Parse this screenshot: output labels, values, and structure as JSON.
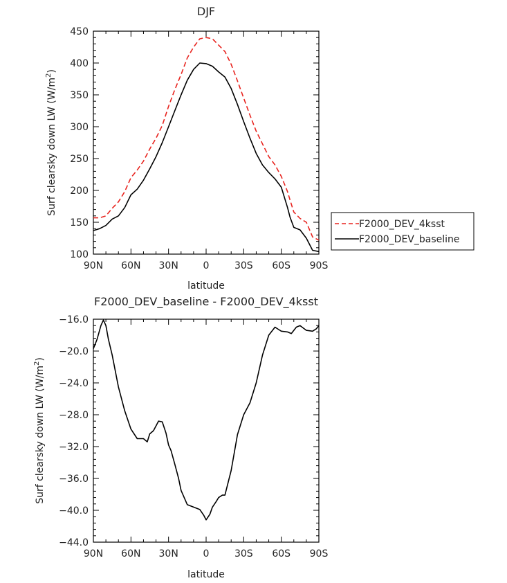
{
  "chart_data": [
    {
      "type": "line",
      "title": "DJF",
      "xlabel": "latitude",
      "ylabel": "Surf clearsky down LW (W/m²)",
      "ylabel_main": "Surf clearsky down LW (W/m",
      "ylabel_sup": "2",
      "ylabel_close": ")",
      "xlim": [
        90,
        -90
      ],
      "ylim": [
        100,
        450
      ],
      "xticks": [
        90,
        60,
        30,
        0,
        -30,
        -60,
        -90
      ],
      "xtick_labels": [
        "90N",
        "60N",
        "30N",
        "0",
        "30S",
        "60S",
        "90S"
      ],
      "yticks": [
        100,
        150,
        200,
        250,
        300,
        350,
        400,
        450
      ],
      "ytick_labels": [
        "100",
        "150",
        "200",
        "250",
        "300",
        "350",
        "400",
        "450"
      ],
      "legend_position": "right",
      "series": [
        {
          "name": "F2000_DEV_4ksst",
          "color": "#e8231e",
          "dash": "dashed",
          "x": [
            90,
            85,
            80,
            75,
            70,
            65,
            60,
            55,
            50,
            45,
            40,
            35,
            30,
            25,
            20,
            15,
            10,
            5,
            0,
            -5,
            -10,
            -15,
            -20,
            -25,
            -30,
            -35,
            -40,
            -45,
            -50,
            -55,
            -60,
            -65,
            -67,
            -70,
            -75,
            -80,
            -85,
            -90
          ],
          "y": [
            157,
            157,
            160,
            172,
            182,
            198,
            220,
            232,
            246,
            265,
            282,
            302,
            332,
            358,
            382,
            408,
            425,
            438,
            440,
            438,
            428,
            418,
            398,
            372,
            345,
            318,
            293,
            273,
            253,
            240,
            222,
            198,
            185,
            166,
            156,
            150,
            127,
            122
          ]
        },
        {
          "name": "F2000_DEV_baseline",
          "color": "#000000",
          "dash": "solid",
          "x": [
            90,
            85,
            80,
            75,
            70,
            65,
            60,
            55,
            50,
            45,
            40,
            35,
            30,
            25,
            20,
            15,
            10,
            5,
            0,
            -5,
            -10,
            -15,
            -20,
            -25,
            -30,
            -35,
            -40,
            -45,
            -50,
            -55,
            -60,
            -65,
            -67,
            -70,
            -75,
            -80,
            -85,
            -90
          ],
          "y": [
            137,
            140,
            145,
            155,
            160,
            173,
            193,
            202,
            216,
            234,
            253,
            275,
            300,
            325,
            350,
            373,
            390,
            400,
            399,
            395,
            386,
            378,
            360,
            335,
            308,
            282,
            258,
            240,
            228,
            218,
            205,
            173,
            158,
            142,
            138,
            125,
            106,
            104
          ]
        }
      ]
    },
    {
      "type": "line",
      "title": "F2000_DEV_baseline - F2000_DEV_4ksst",
      "xlabel": "latitude",
      "ylabel": "Surf clearsky down LW (W/m²)",
      "ylabel_main": "Surf clearsky down LW (W/m",
      "ylabel_sup": "2",
      "ylabel_close": ")",
      "xlim": [
        90,
        -90
      ],
      "ylim": [
        -44,
        -16
      ],
      "xticks": [
        90,
        60,
        30,
        0,
        -30,
        -60,
        -90
      ],
      "xtick_labels": [
        "90N",
        "60N",
        "30N",
        "0",
        "30S",
        "60S",
        "90S"
      ],
      "yticks": [
        -44,
        -40,
        -36,
        -32,
        -28,
        -24,
        -20,
        -16
      ],
      "ytick_labels": [
        "−44.0",
        "−40.0",
        "−36.0",
        "−32.0",
        "−28.0",
        "−24.0",
        "−20.0",
        "−16.0"
      ],
      "series": [
        {
          "color": "#000000",
          "dash": "solid",
          "x": [
            90,
            87,
            84,
            82,
            80,
            78,
            75,
            70,
            65,
            60,
            55,
            50,
            47,
            45,
            42,
            38,
            35,
            32,
            30,
            28,
            25,
            22,
            20,
            15,
            10,
            5,
            2,
            0,
            -3,
            -5,
            -8,
            -10,
            -13,
            -15,
            -20,
            -25,
            -28,
            -30,
            -35,
            -40,
            -45,
            -50,
            -55,
            -58,
            -60,
            -65,
            -68,
            -72,
            -75,
            -80,
            -85,
            -88,
            -90
          ],
          "y": [
            -19.7,
            -18.5,
            -16.8,
            -16.1,
            -16.8,
            -18.5,
            -20.5,
            -24.5,
            -27.5,
            -29.8,
            -31.0,
            -31.0,
            -31.4,
            -30.4,
            -30.0,
            -28.8,
            -28.9,
            -30.3,
            -31.8,
            -32.5,
            -34.2,
            -36.0,
            -37.5,
            -39.3,
            -39.6,
            -39.9,
            -40.6,
            -41.2,
            -40.5,
            -39.6,
            -38.9,
            -38.4,
            -38.1,
            -38.1,
            -35.0,
            -30.5,
            -29.0,
            -28.0,
            -26.5,
            -24.0,
            -20.5,
            -18.0,
            -17.0,
            -17.3,
            -17.5,
            -17.6,
            -17.8,
            -17.0,
            -16.8,
            -17.4,
            -17.5,
            -17.2,
            -16.8
          ]
        }
      ]
    }
  ]
}
